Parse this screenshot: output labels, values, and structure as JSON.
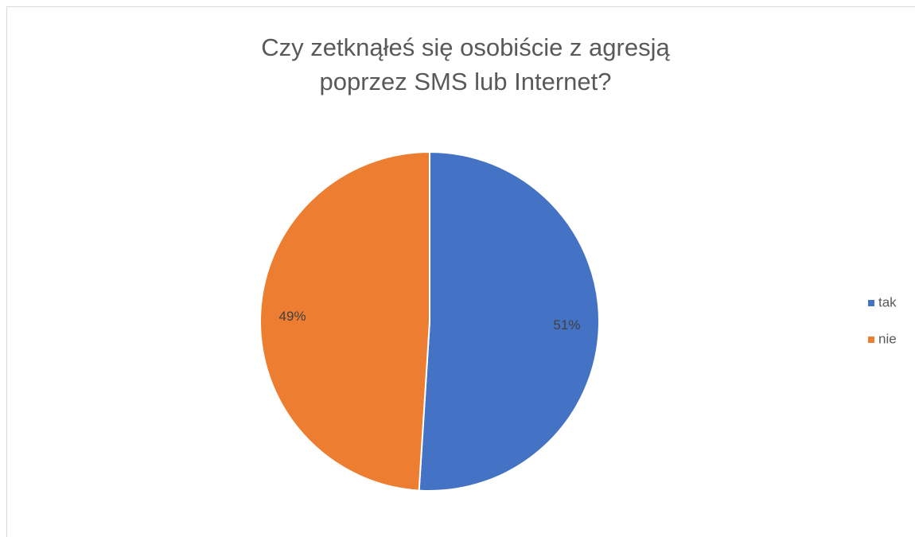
{
  "chart_data": {
    "type": "pie",
    "title": [
      "Czy zetknąłeś się osobiście z agresją",
      "poprzez SMS lub Internet?"
    ],
    "categories": [
      "tak",
      "nie"
    ],
    "values": [
      51,
      49
    ],
    "value_labels": [
      "51%",
      "49%"
    ],
    "colors": [
      "#4472c4",
      "#ed7d31"
    ],
    "legend": "right"
  }
}
